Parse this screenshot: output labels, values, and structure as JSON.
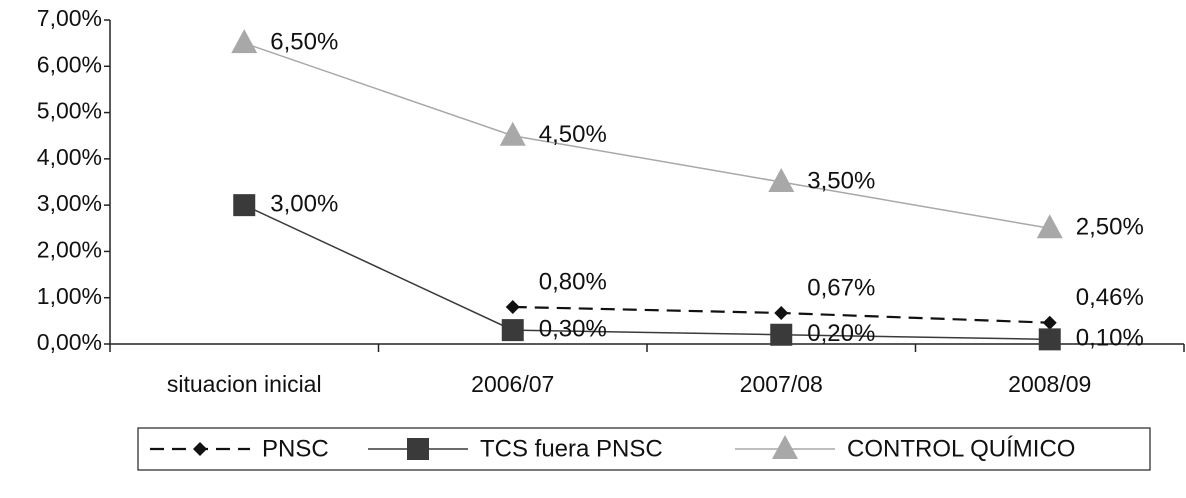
{
  "chart_data": {
    "type": "line",
    "categories": [
      "situacion inicial",
      "2006/07",
      "2007/08",
      "2008/09"
    ],
    "ylim": [
      0,
      7
    ],
    "yticks": [
      {
        "value": 0,
        "label": "0,00%"
      },
      {
        "value": 1,
        "label": "1,00%"
      },
      {
        "value": 2,
        "label": "2,00%"
      },
      {
        "value": 3,
        "label": "3,00%"
      },
      {
        "value": 4,
        "label": "4,00%"
      },
      {
        "value": 5,
        "label": "5,00%"
      },
      {
        "value": 6,
        "label": "6,00%"
      },
      {
        "value": 7,
        "label": "7,00%"
      }
    ],
    "legend": "bottom",
    "series": [
      {
        "name": "PNSC",
        "color": "#111111",
        "dash": true,
        "marker": "diamond",
        "values": [
          null,
          0.8,
          0.67,
          0.46
        ],
        "value_labels": [
          null,
          "0,80%",
          "0,67%",
          "0,46%"
        ]
      },
      {
        "name": "TCS fuera PNSC",
        "color": "#3a3a3a",
        "dash": false,
        "marker": "square",
        "values": [
          3.0,
          0.3,
          0.2,
          0.1
        ],
        "value_labels": [
          "3,00%",
          "0,30%",
          "0,20%",
          "0,10%"
        ]
      },
      {
        "name": "CONTROL QUÍMICO",
        "color": "#a8a8a8",
        "dash": false,
        "marker": "triangle",
        "values": [
          6.5,
          4.5,
          3.5,
          2.5
        ],
        "value_labels": [
          "6,50%",
          "4,50%",
          "3,50%",
          "2,50%"
        ]
      }
    ]
  }
}
